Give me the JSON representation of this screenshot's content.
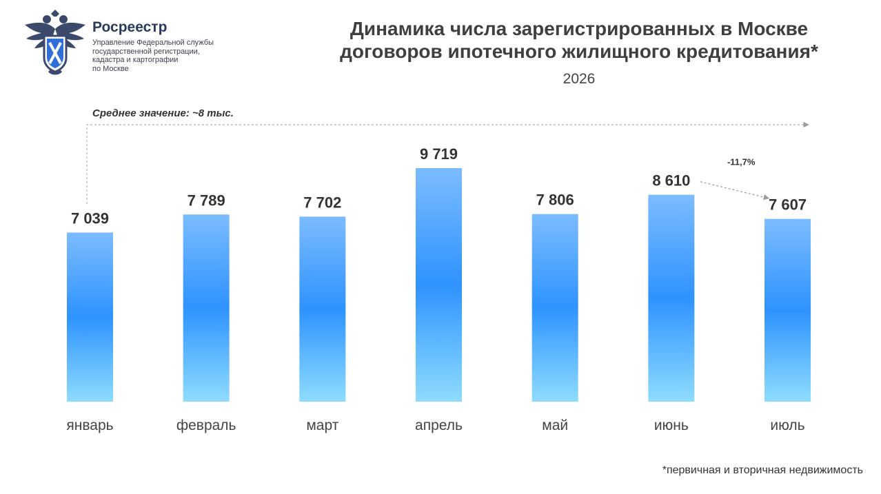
{
  "header": {
    "org_name": "Росреестр",
    "org_sub": [
      "Управление Федеральной службы",
      "государственной регистрации,",
      "кадастра и картографии",
      "по Москве"
    ],
    "logo_icon": "double-headed-eagle-emblem-icon"
  },
  "title_lines": [
    "Динамика числа зарегистрированных в Москве",
    "договоров ипотечного жилищного кредитования*"
  ],
  "year": "2026",
  "average_label": "Среднее значение: ~8 тыс.",
  "footnote": "*первичная и вторичная недвижимость",
  "chart_data": {
    "type": "bar",
    "categories": [
      "январь",
      "февраль",
      "март",
      "апрель",
      "май",
      "июнь",
      "июль"
    ],
    "values": [
      7039,
      7789,
      7702,
      9719,
      7806,
      8610,
      7607
    ],
    "value_labels": [
      "7 039",
      "7 789",
      "7 702",
      "9 719",
      "7 806",
      "8 610",
      "7 607"
    ],
    "title": "Динамика числа зарегистрированных в Москве договоров ипотечного жилищного кредитования*",
    "subtitle": "2026",
    "ylim": [
      0,
      9719
    ],
    "grid": false,
    "legend": "none",
    "average_value": 8000,
    "annotations": [
      {
        "from": "июнь",
        "to": "июль",
        "text": "-11,7%"
      }
    ],
    "colors": {
      "bar_top": "#7cbcff",
      "bar_mid": "#2e93ff",
      "bar_bottom": "#8fdcff",
      "arrow": "#9a9a9a"
    }
  }
}
